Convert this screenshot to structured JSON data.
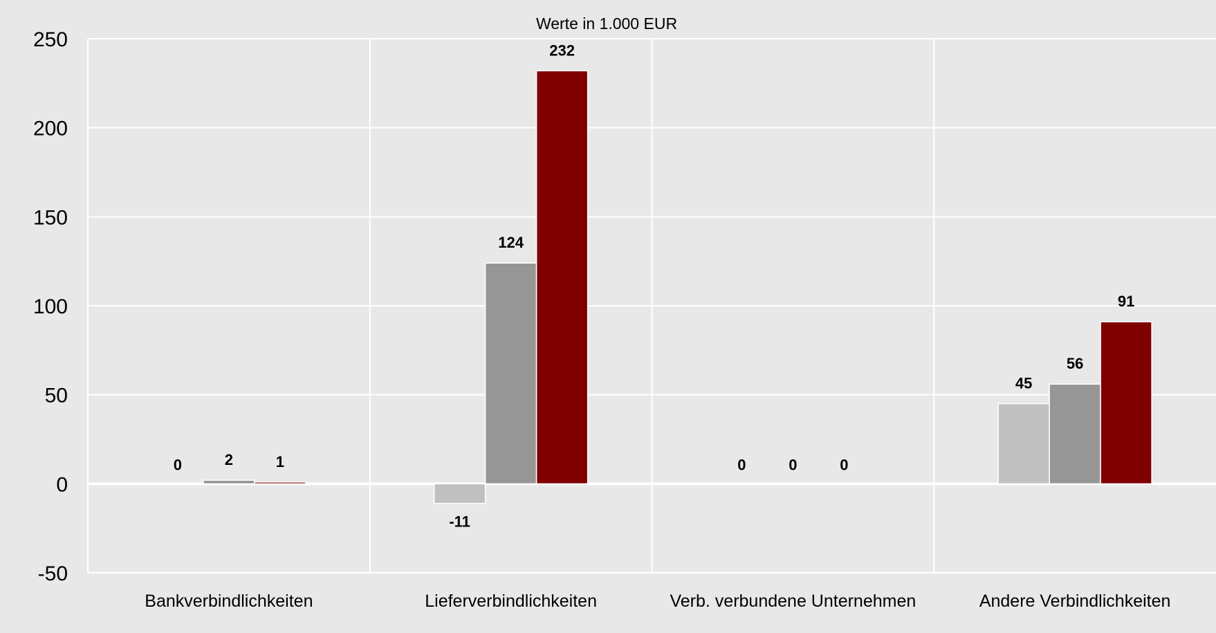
{
  "chart_data": {
    "type": "bar",
    "title": "Werte in 1.000 EUR",
    "xlabel": "",
    "ylabel": "",
    "ylim": [
      -50,
      250
    ],
    "yticks": [
      250,
      200,
      150,
      100,
      50,
      0,
      -50
    ],
    "categories": [
      "Bankverbindlichkeiten",
      "Lieferverbindlichkeiten",
      "Verb. verbundene Unternehmen",
      "Andere Verbindlichkeiten"
    ],
    "series": [
      {
        "values": [
          0,
          -11,
          0,
          45
        ],
        "color": "#c0c0c0"
      },
      {
        "values": [
          2,
          124,
          0,
          56
        ],
        "color": "#969696"
      },
      {
        "values": [
          1,
          232,
          0,
          91
        ],
        "color": "#800000"
      }
    ],
    "data_labels": [
      [
        "0",
        "-11",
        "0",
        "45"
      ],
      [
        "2",
        "124",
        "0",
        "56"
      ],
      [
        "1",
        "232",
        "0",
        "91"
      ]
    ],
    "grid": true,
    "legend": "none",
    "background_color": "#e8e8e8"
  }
}
